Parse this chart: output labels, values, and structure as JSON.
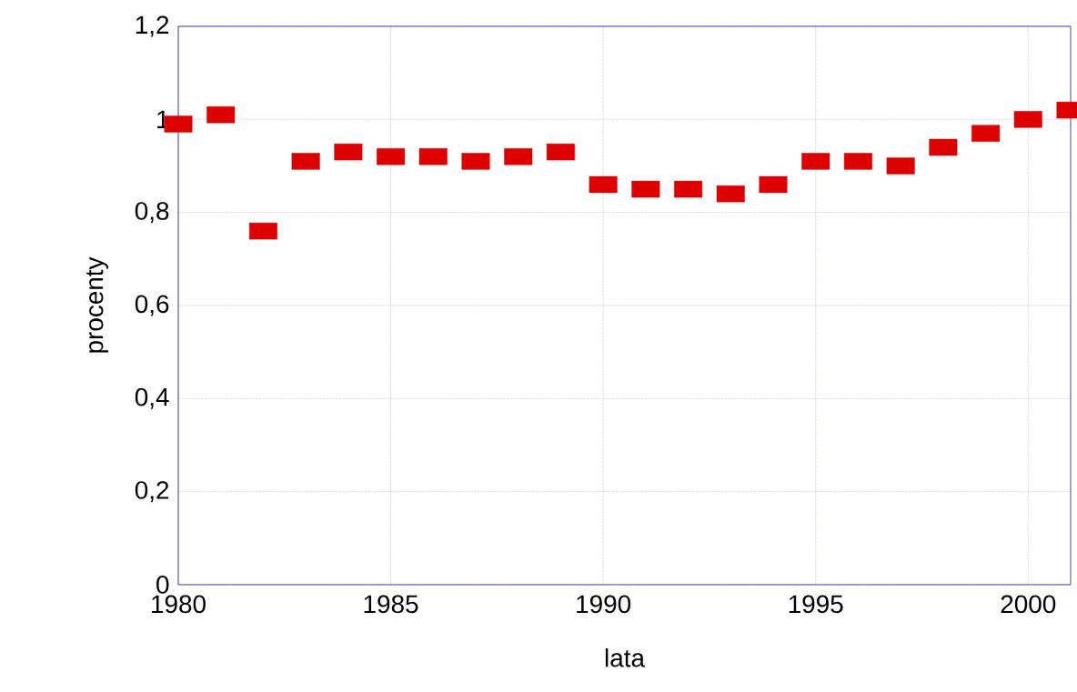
{
  "chart_data": {
    "type": "scatter",
    "xlabel": "lata",
    "ylabel": "procenty",
    "x": [
      1980,
      1981,
      1982,
      1983,
      1984,
      1985,
      1986,
      1987,
      1988,
      1989,
      1990,
      1991,
      1992,
      1993,
      1994,
      1995,
      1996,
      1997,
      1998,
      1999,
      2000,
      2001
    ],
    "series": [
      {
        "color": "#dd0000",
        "values": [
          0.99,
          1.01,
          0.76,
          0.91,
          0.93,
          0.92,
          0.92,
          0.91,
          0.92,
          0.93,
          0.86,
          0.85,
          0.85,
          0.84,
          0.86,
          0.91,
          0.91,
          0.9,
          0.94,
          0.97,
          1.0,
          1.02
        ]
      }
    ],
    "xlim": [
      1980,
      2001
    ],
    "ylim": [
      0,
      1.2
    ],
    "xticks": [
      1980,
      1985,
      1990,
      1995,
      2000
    ],
    "yticks": [
      {
        "value": 0,
        "label": "0"
      },
      {
        "value": 0.2,
        "label": "0,2"
      },
      {
        "value": 0.4,
        "label": "0,4"
      },
      {
        "value": 0.6,
        "label": "0,6"
      },
      {
        "value": 0.8,
        "label": "0,8"
      },
      {
        "value": 1,
        "label": "1"
      },
      {
        "value": 1.2,
        "label": "1,2"
      }
    ],
    "grid": true,
    "marker": "square"
  }
}
